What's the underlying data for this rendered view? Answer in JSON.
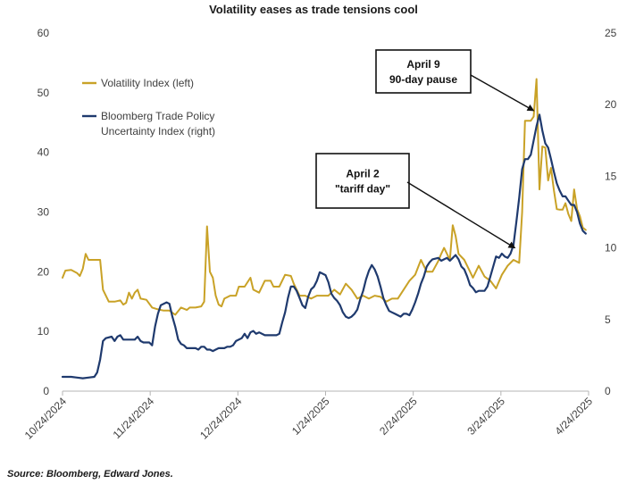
{
  "chart_data": {
    "type": "line",
    "title": "Volatility eases as trade tensions cool",
    "source": "Source: Bloomberg, Edward Jones.",
    "x_tick_labels": [
      "10/24/2024",
      "11/24/2024",
      "12/24/2024",
      "1/24/2025",
      "2/24/2025",
      "3/24/2025",
      "4/24/2025"
    ],
    "x_range_days": [
      0,
      182
    ],
    "y_left": {
      "min": 0,
      "max": 60,
      "ticks": [
        "0",
        "10",
        "20",
        "30",
        "40",
        "50",
        "60"
      ]
    },
    "y_right": {
      "min": 0,
      "max": 25,
      "ticks": [
        "0",
        "5",
        "10",
        "15",
        "20",
        "25"
      ]
    },
    "legend_position": "top-left",
    "series": [
      {
        "name": "Volatility Index (left)",
        "axis": "left",
        "color": "#C9A227",
        "points": [
          [
            0,
            19
          ],
          [
            1,
            20.2
          ],
          [
            3,
            20.3
          ],
          [
            5,
            19.8
          ],
          [
            6,
            19.3
          ],
          [
            7,
            20.5
          ],
          [
            8,
            23
          ],
          [
            9,
            22
          ],
          [
            11,
            22
          ],
          [
            13,
            22
          ],
          [
            14,
            17
          ],
          [
            16,
            15
          ],
          [
            18,
            15
          ],
          [
            20,
            15.2
          ],
          [
            21,
            14.5
          ],
          [
            22,
            14.8
          ],
          [
            23,
            16.5
          ],
          [
            24,
            15.5
          ],
          [
            25,
            16.5
          ],
          [
            26,
            17
          ],
          [
            27,
            15.5
          ],
          [
            29,
            15.3
          ],
          [
            31,
            14
          ],
          [
            33,
            13.7
          ],
          [
            35,
            13.5
          ],
          [
            37,
            13.5
          ],
          [
            39,
            12.8
          ],
          [
            41,
            14
          ],
          [
            43,
            13.6
          ],
          [
            44,
            14
          ],
          [
            46,
            14
          ],
          [
            48,
            14.2
          ],
          [
            49,
            15
          ],
          [
            50,
            27.6
          ],
          [
            51,
            20
          ],
          [
            52,
            19
          ],
          [
            53,
            16
          ],
          [
            54,
            14.5
          ],
          [
            55,
            14.2
          ],
          [
            56,
            15.5
          ],
          [
            58,
            16
          ],
          [
            60,
            16
          ],
          [
            61,
            17.5
          ],
          [
            63,
            17.5
          ],
          [
            65,
            19
          ],
          [
            66,
            17
          ],
          [
            68,
            16.5
          ],
          [
            70,
            18.5
          ],
          [
            72,
            18.5
          ],
          [
            73,
            17.5
          ],
          [
            75,
            17.5
          ],
          [
            77,
            19.5
          ],
          [
            79,
            19.3
          ],
          [
            80,
            18
          ],
          [
            82,
            16
          ],
          [
            84,
            16
          ],
          [
            86,
            15.5
          ],
          [
            88,
            16
          ],
          [
            90,
            16
          ],
          [
            92,
            16
          ],
          [
            94,
            17
          ],
          [
            96,
            16.2
          ],
          [
            98,
            18
          ],
          [
            100,
            17
          ],
          [
            102,
            15.5
          ],
          [
            104,
            16
          ],
          [
            106,
            15.5
          ],
          [
            108,
            16
          ],
          [
            110,
            15.8
          ],
          [
            112,
            15
          ],
          [
            114,
            15.5
          ],
          [
            116,
            15.5
          ],
          [
            118,
            17
          ],
          [
            120,
            18.5
          ],
          [
            122,
            19.5
          ],
          [
            124,
            22
          ],
          [
            126,
            20
          ],
          [
            128,
            20
          ],
          [
            130,
            21.8
          ],
          [
            131,
            23
          ],
          [
            132,
            24
          ],
          [
            134,
            22
          ],
          [
            135,
            27.8
          ],
          [
            136,
            26
          ],
          [
            137,
            23
          ],
          [
            139,
            22
          ],
          [
            141,
            20
          ],
          [
            142,
            19
          ],
          [
            144,
            21
          ],
          [
            146,
            19.2
          ],
          [
            148,
            18.5
          ],
          [
            150,
            17.2
          ],
          [
            152,
            19.5
          ],
          [
            154,
            21
          ],
          [
            156,
            22
          ],
          [
            158,
            21.5
          ],
          [
            159,
            30
          ],
          [
            160,
            45.3
          ],
          [
            162,
            45.3
          ],
          [
            163,
            46
          ],
          [
            164,
            52.3
          ],
          [
            165,
            33.8
          ],
          [
            166,
            41
          ],
          [
            167,
            40.8
          ],
          [
            168,
            35.3
          ],
          [
            169,
            37.4
          ],
          [
            170,
            33.6
          ],
          [
            171,
            30.5
          ],
          [
            172,
            30.4
          ],
          [
            173,
            30.4
          ],
          [
            174,
            31.5
          ],
          [
            175,
            29.7
          ],
          [
            176,
            28.5
          ],
          [
            177,
            33.8
          ],
          [
            178,
            30.5
          ],
          [
            179,
            29.3
          ],
          [
            180,
            27.4
          ],
          [
            181,
            27
          ]
        ]
      },
      {
        "name": "Bloomberg Trade Policy Uncertainty Index (right)",
        "axis": "right",
        "color": "#1F3A6E",
        "points": [
          [
            0,
            1
          ],
          [
            3,
            1
          ],
          [
            5,
            0.95
          ],
          [
            7,
            0.9
          ],
          [
            9,
            0.95
          ],
          [
            11,
            1
          ],
          [
            12,
            1.3
          ],
          [
            13,
            2.2
          ],
          [
            14,
            3.5
          ],
          [
            15,
            3.7
          ],
          [
            17,
            3.8
          ],
          [
            18,
            3.5
          ],
          [
            19,
            3.8
          ],
          [
            20,
            3.9
          ],
          [
            21,
            3.6
          ],
          [
            23,
            3.6
          ],
          [
            25,
            3.6
          ],
          [
            26,
            3.8
          ],
          [
            27,
            3.5
          ],
          [
            28,
            3.4
          ],
          [
            30,
            3.4
          ],
          [
            31,
            3.2
          ],
          [
            32,
            4.5
          ],
          [
            33,
            5.4
          ],
          [
            34,
            6
          ],
          [
            36,
            6.2
          ],
          [
            37,
            6.1
          ],
          [
            38,
            5.2
          ],
          [
            39,
            4.5
          ],
          [
            40,
            3.6
          ],
          [
            41,
            3.3
          ],
          [
            42,
            3.2
          ],
          [
            43,
            3
          ],
          [
            44,
            3
          ],
          [
            45,
            3
          ],
          [
            46,
            3
          ],
          [
            47,
            2.9
          ],
          [
            48,
            3.1
          ],
          [
            49,
            3.1
          ],
          [
            50,
            2.9
          ],
          [
            51,
            2.9
          ],
          [
            52,
            2.8
          ],
          [
            53,
            2.9
          ],
          [
            54,
            3
          ],
          [
            55,
            3
          ],
          [
            56,
            3
          ],
          [
            57,
            3.1
          ],
          [
            58,
            3.1
          ],
          [
            59,
            3.2
          ],
          [
            60,
            3.5
          ],
          [
            62,
            3.7
          ],
          [
            63,
            4
          ],
          [
            64,
            3.7
          ],
          [
            65,
            4.1
          ],
          [
            66,
            4.2
          ],
          [
            67,
            4
          ],
          [
            68,
            4.1
          ],
          [
            70,
            3.9
          ],
          [
            72,
            3.9
          ],
          [
            74,
            3.9
          ],
          [
            75,
            4
          ],
          [
            76,
            4.8
          ],
          [
            77,
            5.5
          ],
          [
            78,
            6.5
          ],
          [
            79,
            7.3
          ],
          [
            80,
            7.3
          ],
          [
            81,
            7
          ],
          [
            82,
            6.5
          ],
          [
            83,
            6
          ],
          [
            84,
            5.8
          ],
          [
            85,
            6.6
          ],
          [
            86,
            7.1
          ],
          [
            87,
            7.3
          ],
          [
            88,
            7.7
          ],
          [
            89,
            8.3
          ],
          [
            90,
            8.2
          ],
          [
            91,
            8.1
          ],
          [
            92,
            7.6
          ],
          [
            93,
            6.8
          ],
          [
            94,
            6.5
          ],
          [
            95,
            6.3
          ],
          [
            96,
            6
          ],
          [
            97,
            5.5
          ],
          [
            98,
            5.2
          ],
          [
            99,
            5.1
          ],
          [
            100,
            5.2
          ],
          [
            101,
            5.4
          ],
          [
            102,
            5.7
          ],
          [
            103,
            6.4
          ],
          [
            104,
            7
          ],
          [
            105,
            7.8
          ],
          [
            106,
            8.4
          ],
          [
            107,
            8.8
          ],
          [
            108,
            8.5
          ],
          [
            109,
            8
          ],
          [
            110,
            7.3
          ],
          [
            111,
            6.5
          ],
          [
            112,
            6
          ],
          [
            113,
            5.6
          ],
          [
            114,
            5.5
          ],
          [
            115,
            5.4
          ],
          [
            116,
            5.3
          ],
          [
            117,
            5.2
          ],
          [
            118,
            5.4
          ],
          [
            119,
            5.4
          ],
          [
            120,
            5.3
          ],
          [
            121,
            5.7
          ],
          [
            122,
            6.2
          ],
          [
            123,
            6.8
          ],
          [
            124,
            7.5
          ],
          [
            125,
            8
          ],
          [
            126,
            8.7
          ],
          [
            127,
            9
          ],
          [
            128,
            9.2
          ],
          [
            130,
            9.3
          ],
          [
            131,
            9.1
          ],
          [
            132,
            9.2
          ],
          [
            133,
            9.3
          ],
          [
            134,
            9.1
          ],
          [
            135,
            9.3
          ],
          [
            136,
            9.5
          ],
          [
            137,
            9.2
          ],
          [
            138,
            8.7
          ],
          [
            139,
            8.5
          ],
          [
            140,
            8
          ],
          [
            141,
            7.4
          ],
          [
            142,
            7.2
          ],
          [
            143,
            6.9
          ],
          [
            144,
            7
          ],
          [
            145,
            7
          ],
          [
            146,
            7
          ],
          [
            147,
            7.3
          ],
          [
            148,
            8
          ],
          [
            149,
            8.7
          ],
          [
            150,
            9.4
          ],
          [
            151,
            9.3
          ],
          [
            152,
            9.6
          ],
          [
            153,
            9.4
          ],
          [
            154,
            9.3
          ],
          [
            155,
            9.6
          ],
          [
            156,
            10.2
          ],
          [
            157,
            11.8
          ],
          [
            158,
            13.5
          ],
          [
            159,
            15.5
          ],
          [
            160,
            16.2
          ],
          [
            161,
            16.2
          ],
          [
            162,
            16.5
          ],
          [
            163,
            17.5
          ],
          [
            164,
            18.5
          ],
          [
            165,
            19.3
          ],
          [
            166,
            18.2
          ],
          [
            167,
            17.3
          ],
          [
            168,
            17
          ],
          [
            169,
            16.2
          ],
          [
            170,
            15.3
          ],
          [
            171,
            14.5
          ],
          [
            172,
            14
          ],
          [
            173,
            13.6
          ],
          [
            174,
            13.6
          ],
          [
            175,
            13.3
          ],
          [
            176,
            13
          ],
          [
            177,
            13
          ],
          [
            178,
            12.5
          ],
          [
            179,
            11.7
          ],
          [
            180,
            11.2
          ],
          [
            181,
            11
          ]
        ]
      }
    ],
    "annotations": [
      {
        "lines": [
          "April 9",
          "90-day pause"
        ],
        "x": 163,
        "y_left": 47
      },
      {
        "lines": [
          "April 2",
          "\"tariff day\""
        ],
        "x": 156.5,
        "y_left": 24
      }
    ]
  }
}
